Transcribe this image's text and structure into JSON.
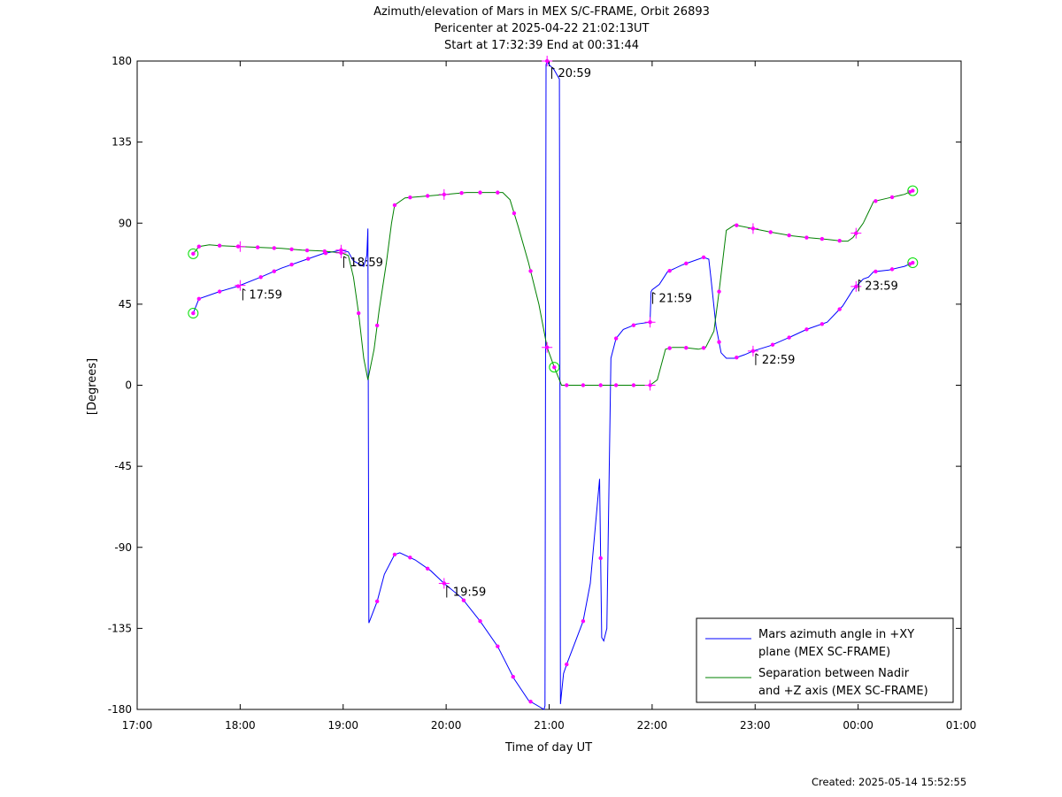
{
  "created": "Created: 2025-05-14 15:52:55",
  "chart_data": {
    "type": "line",
    "title": [
      "Azimuth/elevation of Mars in MEX S/C-FRAME,  Orbit 26893",
      "Pericenter at 2025-04-22 21:02:13UT",
      "Start at 17:32:39 End at 00:31:44"
    ],
    "xlabel": "Time of day UT",
    "ylabel": "[Degrees]",
    "xlim": [
      17.0,
      25.0
    ],
    "ylim": [
      -180,
      180
    ],
    "xticks": [
      {
        "v": 17,
        "label": "17:00"
      },
      {
        "v": 18,
        "label": "18:00"
      },
      {
        "v": 19,
        "label": "19:00"
      },
      {
        "v": 20,
        "label": "20:00"
      },
      {
        "v": 21,
        "label": "21:00"
      },
      {
        "v": 22,
        "label": "22:00"
      },
      {
        "v": 23,
        "label": "23:00"
      },
      {
        "v": 24,
        "label": "00:00"
      },
      {
        "v": 25,
        "label": "01:00"
      }
    ],
    "yticks": [
      {
        "v": 180,
        "label": "180"
      },
      {
        "v": 135,
        "label": "135"
      },
      {
        "v": 90,
        "label": "90"
      },
      {
        "v": 45,
        "label": "45"
      },
      {
        "v": 0,
        "label": "0"
      },
      {
        "v": -45,
        "label": "-45"
      },
      {
        "v": -90,
        "label": "-90"
      },
      {
        "v": -135,
        "label": "-135"
      },
      {
        "v": -180,
        "label": "-180"
      }
    ],
    "grid": false,
    "legend": "bottom-right",
    "series": [
      {
        "name": "Mars azimuth angle in +XY plane (MEX SC-FRAME)",
        "legend_lines": [
          "Mars azimuth angle in +XY",
          "plane (MEX SC-FRAME)"
        ],
        "color": "#0000ff",
        "x": [
          17.544,
          17.6,
          17.8,
          17.98,
          18.2,
          18.4,
          18.6,
          18.8,
          18.98,
          19.05,
          19.1,
          19.2,
          19.23,
          19.24,
          19.25,
          19.33,
          19.4,
          19.5,
          19.55,
          19.7,
          19.85,
          19.98,
          20.15,
          20.33,
          20.5,
          20.66,
          20.8,
          20.95,
          20.96,
          20.97,
          20.98,
          21.0,
          21.05,
          21.1,
          21.11,
          21.12,
          21.14,
          21.17,
          21.25,
          21.33,
          21.4,
          21.49,
          21.51,
          21.53,
          21.56,
          21.6,
          21.65,
          21.72,
          21.85,
          21.98,
          21.99,
          22.0,
          22.07,
          22.15,
          22.3,
          22.5,
          22.55,
          22.57,
          22.62,
          22.67,
          22.72,
          22.8,
          22.9,
          22.98,
          23.15,
          23.35,
          23.5,
          23.7,
          23.85,
          23.95,
          24.05,
          24.1,
          24.15,
          24.3,
          24.45,
          24.53
        ],
        "y": [
          40,
          48,
          52,
          55,
          60,
          65,
          69,
          73,
          75,
          74,
          69,
          66,
          72,
          87,
          -132,
          -120,
          -105,
          -94,
          -93,
          -97,
          -103,
          -110,
          -118,
          -131,
          -145,
          -163,
          -175,
          -180,
          -178,
          178,
          180,
          178,
          175,
          170,
          -177,
          -171,
          -160,
          -155,
          -143,
          -131,
          -110,
          -52,
          -140,
          -142,
          -135,
          15,
          26,
          31,
          34,
          35,
          52,
          53,
          56,
          63,
          67,
          71,
          70,
          60,
          33,
          18,
          15,
          15,
          17,
          19,
          22,
          27,
          31,
          35,
          44,
          53,
          59,
          60,
          63,
          64,
          66,
          68
        ],
        "markers": [
          17.6,
          17.8,
          17.98,
          18.2,
          18.33,
          18.5,
          18.66,
          18.83,
          18.98,
          19.33,
          19.5,
          19.65,
          19.82,
          19.98,
          20.17,
          20.33,
          20.5,
          20.65,
          20.82,
          20.98,
          21.17,
          21.33,
          21.5,
          21.65,
          21.82,
          21.98,
          22.17,
          22.33,
          22.5,
          22.65,
          22.82,
          22.98,
          23.17,
          23.33,
          23.5,
          23.65,
          23.82,
          23.98,
          24.17,
          24.33,
          24.5
        ],
        "crosses": [
          18.0,
          18.98,
          19.98,
          20.98,
          21.98,
          22.98,
          23.98
        ],
        "endpoints": [
          17.544,
          24.53
        ]
      },
      {
        "name": "Separation between Nadir and +Z axis (MEX SC-FRAME)",
        "legend_lines": [
          "Separation between Nadir",
          "and +Z axis (MEX SC-FRAME)"
        ],
        "color": "#008000",
        "x": [
          17.544,
          17.6,
          17.7,
          17.8,
          18.0,
          18.2,
          18.4,
          18.6,
          18.8,
          18.98,
          19.05,
          19.1,
          19.15,
          19.2,
          19.24,
          19.3,
          19.35,
          19.42,
          19.47,
          19.5,
          19.6,
          19.8,
          20.0,
          20.2,
          20.4,
          20.55,
          20.62,
          20.7,
          20.8,
          20.9,
          20.98,
          21.05,
          21.1,
          21.12,
          21.15,
          21.2,
          21.4,
          21.6,
          21.8,
          21.98,
          22.05,
          22.13,
          22.2,
          22.3,
          22.45,
          22.52,
          22.6,
          22.65,
          22.72,
          22.8,
          22.98,
          23.15,
          23.35,
          23.5,
          23.7,
          23.85,
          23.9,
          23.95,
          24.0,
          24.05,
          24.1,
          24.15,
          24.3,
          24.45,
          24.53
        ],
        "y": [
          73,
          77,
          78,
          77.5,
          77,
          76.5,
          76,
          75,
          74.5,
          73.5,
          72,
          60,
          40,
          15,
          3,
          20,
          42,
          68,
          90,
          100,
          104,
          105,
          106,
          107,
          107,
          107,
          103,
          88,
          68,
          45,
          21,
          10,
          3,
          0,
          0,
          0,
          0,
          0,
          0,
          0,
          3,
          20,
          21,
          21,
          20,
          21,
          30,
          52,
          86,
          89,
          87,
          85,
          83,
          82,
          81,
          80,
          80,
          82,
          86,
          90,
          96,
          102,
          104,
          106,
          108
        ],
        "markers": [
          17.6,
          17.8,
          17.98,
          18.17,
          18.33,
          18.5,
          18.65,
          18.82,
          18.98,
          19.15,
          19.33,
          19.5,
          19.65,
          19.82,
          19.98,
          20.15,
          20.33,
          20.5,
          20.66,
          20.82,
          20.98,
          21.17,
          21.33,
          21.5,
          21.65,
          21.82,
          21.98,
          22.17,
          22.33,
          22.5,
          22.65,
          22.82,
          22.98,
          23.15,
          23.33,
          23.5,
          23.65,
          23.82,
          23.98,
          24.17,
          24.33,
          24.5
        ],
        "crosses": [
          18.0,
          18.98,
          19.98,
          20.98,
          21.98,
          22.98,
          23.98
        ],
        "endpoints": [
          17.544,
          21.05,
          24.53
        ]
      }
    ],
    "annotations": [
      {
        "label": "17:59",
        "x": 18.0,
        "y": 55
      },
      {
        "label": "18:59",
        "x": 18.98,
        "y": 73
      },
      {
        "label": "19:59",
        "x": 19.98,
        "y": -110
      },
      {
        "label": "20:59",
        "x": 21.0,
        "y": 178
      },
      {
        "label": "21:59",
        "x": 21.98,
        "y": 53
      },
      {
        "label": "22:59",
        "x": 22.98,
        "y": 19
      },
      {
        "label": "23:59",
        "x": 23.98,
        "y": 60
      }
    ]
  }
}
